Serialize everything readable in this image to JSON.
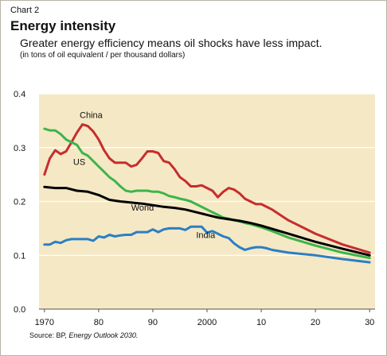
{
  "header": {
    "chart_number": "Chart 2",
    "title": "Energy intensity",
    "subtitle": "Greater energy efficiency means oil shocks have less impact.",
    "units": "(in tons of oil equivalent / per thousand dollars)"
  },
  "source": {
    "prefix": "Source: BP, ",
    "publication": "Energy Outlook 2030."
  },
  "colors": {
    "plot_background": "#f5e8c5",
    "grid": "#ffffff",
    "China": "#c62d2d",
    "US": "#3bb54a",
    "World": "#000000",
    "India": "#2a7fc4"
  },
  "chart_data": {
    "type": "line",
    "title": "Energy intensity",
    "xlabel": "",
    "ylabel": "",
    "xlim": [
      1969,
      2031
    ],
    "ylim": [
      0,
      0.4
    ],
    "yticks": [
      0.0,
      0.1,
      0.2,
      0.3,
      0.4
    ],
    "ytick_labels": [
      "0.0",
      "0.1",
      "0.2",
      "0.3",
      "0.4"
    ],
    "xticks": [
      1970,
      1980,
      1990,
      2000,
      2010,
      2020,
      2030
    ],
    "xtick_labels": [
      "1970",
      "80",
      "90",
      "2000",
      "10",
      "20",
      "30"
    ],
    "grid": true,
    "legend": "labels on lines",
    "series": [
      {
        "name": "China",
        "x": [
          1970,
          1971,
          1972,
          1973,
          1974,
          1975,
          1976,
          1977,
          1978,
          1979,
          1980,
          1981,
          1982,
          1983,
          1984,
          1985,
          1986,
          1987,
          1988,
          1989,
          1990,
          1991,
          1992,
          1993,
          1994,
          1995,
          1996,
          1997,
          1998,
          1999,
          2000,
          2001,
          2002,
          2003,
          2004,
          2005,
          2006,
          2007,
          2008,
          2009,
          2010,
          2012,
          2015,
          2020,
          2025,
          2030
        ],
        "values": [
          0.25,
          0.28,
          0.295,
          0.288,
          0.293,
          0.31,
          0.328,
          0.343,
          0.34,
          0.33,
          0.315,
          0.295,
          0.28,
          0.272,
          0.272,
          0.272,
          0.265,
          0.268,
          0.28,
          0.293,
          0.293,
          0.29,
          0.275,
          0.272,
          0.26,
          0.245,
          0.238,
          0.228,
          0.228,
          0.23,
          0.225,
          0.22,
          0.208,
          0.218,
          0.225,
          0.222,
          0.215,
          0.205,
          0.2,
          0.195,
          0.195,
          0.185,
          0.165,
          0.14,
          0.12,
          0.105
        ]
      },
      {
        "name": "US",
        "x": [
          1970,
          1971,
          1972,
          1973,
          1974,
          1975,
          1976,
          1977,
          1978,
          1979,
          1980,
          1981,
          1982,
          1983,
          1984,
          1985,
          1986,
          1987,
          1988,
          1989,
          1990,
          1991,
          1992,
          1993,
          1994,
          1995,
          1996,
          1997,
          1998,
          1999,
          2000,
          2001,
          2002,
          2003,
          2004,
          2005,
          2006,
          2007,
          2008,
          2009,
          2010,
          2012,
          2015,
          2020,
          2025,
          2030
        ],
        "values": [
          0.335,
          0.332,
          0.332,
          0.325,
          0.315,
          0.31,
          0.305,
          0.29,
          0.285,
          0.275,
          0.265,
          0.255,
          0.245,
          0.238,
          0.228,
          0.22,
          0.218,
          0.22,
          0.22,
          0.22,
          0.218,
          0.218,
          0.215,
          0.21,
          0.208,
          0.205,
          0.203,
          0.2,
          0.195,
          0.19,
          0.185,
          0.18,
          0.175,
          0.17,
          0.168,
          0.165,
          0.163,
          0.16,
          0.158,
          0.155,
          0.152,
          0.145,
          0.133,
          0.118,
          0.105,
          0.095
        ]
      },
      {
        "name": "World",
        "x": [
          1970,
          1972,
          1974,
          1976,
          1978,
          1980,
          1982,
          1984,
          1986,
          1988,
          1990,
          1992,
          1994,
          1996,
          1998,
          2000,
          2002,
          2004,
          2006,
          2008,
          2010,
          2015,
          2020,
          2025,
          2030
        ],
        "values": [
          0.227,
          0.225,
          0.225,
          0.22,
          0.218,
          0.212,
          0.203,
          0.2,
          0.198,
          0.196,
          0.193,
          0.19,
          0.188,
          0.185,
          0.18,
          0.175,
          0.17,
          0.167,
          0.164,
          0.16,
          0.155,
          0.14,
          0.125,
          0.112,
          0.1
        ]
      },
      {
        "name": "India",
        "x": [
          1970,
          1971,
          1972,
          1973,
          1974,
          1975,
          1976,
          1977,
          1978,
          1979,
          1980,
          1981,
          1982,
          1983,
          1984,
          1985,
          1986,
          1987,
          1988,
          1989,
          1990,
          1991,
          1992,
          1993,
          1994,
          1995,
          1996,
          1997,
          1998,
          1999,
          2000,
          2001,
          2002,
          2003,
          2004,
          2005,
          2006,
          2007,
          2008,
          2009,
          2010,
          2011,
          2012,
          2015,
          2020,
          2025,
          2030
        ],
        "values": [
          0.12,
          0.12,
          0.125,
          0.123,
          0.128,
          0.13,
          0.13,
          0.13,
          0.13,
          0.127,
          0.135,
          0.133,
          0.138,
          0.135,
          0.137,
          0.138,
          0.138,
          0.143,
          0.143,
          0.143,
          0.148,
          0.143,
          0.148,
          0.15,
          0.15,
          0.15,
          0.147,
          0.153,
          0.153,
          0.153,
          0.142,
          0.145,
          0.14,
          0.135,
          0.132,
          0.122,
          0.115,
          0.11,
          0.113,
          0.115,
          0.115,
          0.113,
          0.11,
          0.105,
          0.1,
          0.093,
          0.087
        ]
      }
    ]
  }
}
